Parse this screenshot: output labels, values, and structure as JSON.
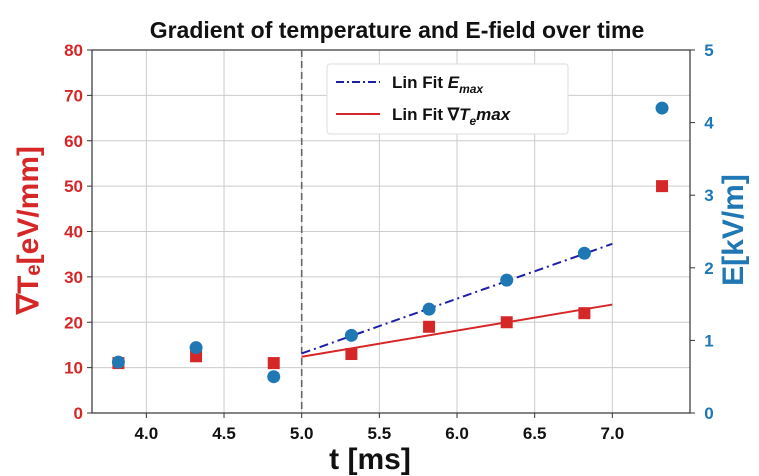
{
  "chart_data": {
    "type": "scatter",
    "title": "Gradient of temperature and E-field over time",
    "xlabel": "t [ms]",
    "ylabel_left": "∇Tₑ[eV/mm]",
    "ylabel_right": "E[kV/m]",
    "xlim": [
      3.65,
      7.5
    ],
    "ylim_left": [
      0,
      80
    ],
    "ylim_right": [
      0,
      5
    ],
    "x_ticks": [
      "4.0",
      "4.5",
      "5.0",
      "5.5",
      "6.0",
      "6.5",
      "7.0"
    ],
    "y_left_ticks": [
      "0",
      "10",
      "20",
      "30",
      "40",
      "50",
      "60",
      "70",
      "80"
    ],
    "y_right_ticks": [
      "0",
      "1",
      "2",
      "3",
      "4",
      "5"
    ],
    "grid": true,
    "legend_position": "top-center",
    "vline_x": 5.0,
    "colors": {
      "red": "#d62728",
      "blue": "#1f77b4",
      "fit_blue": "#1f1fa8",
      "grid": "#cccccc"
    },
    "series": [
      {
        "marker": "square",
        "axis": "left",
        "color": "#d62728",
        "x": [
          3.82,
          4.32,
          4.82,
          5.32,
          5.82,
          6.32,
          6.82,
          7.32
        ],
        "y": [
          11,
          12.5,
          11,
          13,
          19,
          20,
          22,
          50
        ]
      },
      {
        "marker": "circle",
        "axis": "right",
        "color": "#1f77b4",
        "x": [
          3.82,
          4.32,
          4.82,
          5.32,
          5.82,
          6.32,
          6.82,
          7.32
        ],
        "y": [
          0.7,
          0.9,
          0.5,
          1.07,
          1.43,
          1.83,
          2.2,
          4.2
        ]
      },
      {
        "name": "Lin Fit E_max",
        "legend_main": "Lin Fit ",
        "legend_sym": "E",
        "legend_sub": "max",
        "type": "line",
        "style": "dash-dot",
        "axis": "right",
        "color": "#1f1fa8",
        "x": [
          5.0,
          7.0
        ],
        "y": [
          0.82,
          2.33
        ]
      },
      {
        "name": "Lin Fit ∇T_e max",
        "legend_main": "Lin Fit ∇",
        "legend_sym": "T",
        "legend_sub": "e",
        "legend_tail": "max",
        "type": "line",
        "style": "solid",
        "axis": "left",
        "color": "#d62728",
        "x": [
          5.0,
          7.0
        ],
        "y": [
          12.4,
          23.9
        ]
      }
    ]
  }
}
